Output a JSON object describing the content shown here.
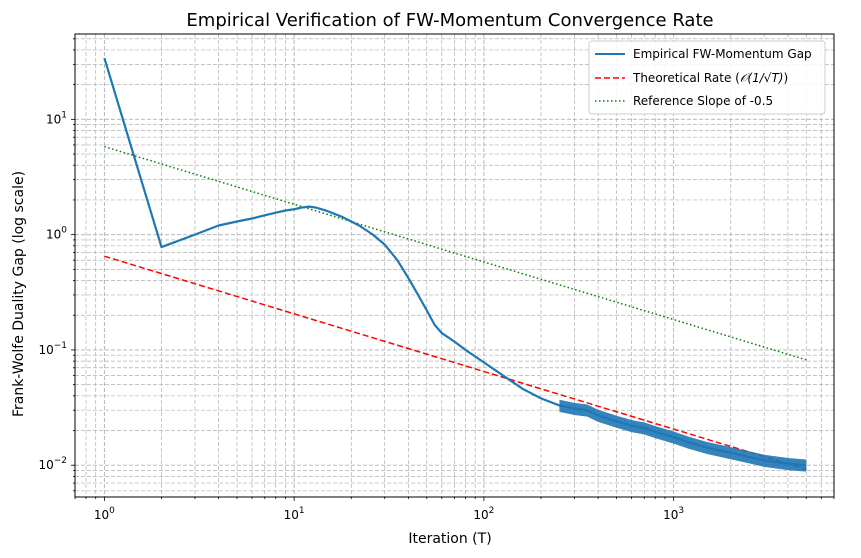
{
  "chart_data": {
    "type": "line",
    "title": "Empirical Verification of FW-Momentum Convergence Rate",
    "xlabel": "Iteration (T)",
    "ylabel": "Frank-Wolfe Duality Gap (log scale)",
    "xscale": "log",
    "yscale": "log",
    "xlim": [
      0.7,
      7000
    ],
    "ylim": [
      0.0053,
      55
    ],
    "grid": "both-major-minor-dashed",
    "legend_position": "top-right",
    "x_ticks": [
      {
        "value": 1,
        "base": "10",
        "exp": "0"
      },
      {
        "value": 10,
        "base": "10",
        "exp": "1"
      },
      {
        "value": 100,
        "base": "10",
        "exp": "2"
      },
      {
        "value": 1000,
        "base": "10",
        "exp": "3"
      }
    ],
    "y_ticks": [
      {
        "value": 0.01,
        "base": "10",
        "exp": "−2"
      },
      {
        "value": 0.1,
        "base": "10",
        "exp": "−1"
      },
      {
        "value": 1,
        "base": "10",
        "exp": "0"
      },
      {
        "value": 10,
        "base": "10",
        "exp": "1"
      }
    ],
    "series": [
      {
        "name": "Empirical FW-Momentum Gap",
        "color": "#1f77b4",
        "style": "solid",
        "points": [
          [
            1,
            34
          ],
          [
            2,
            0.78
          ],
          [
            3,
            1.0
          ],
          [
            4,
            1.2
          ],
          [
            5,
            1.3
          ],
          [
            6,
            1.38
          ],
          [
            7,
            1.47
          ],
          [
            8,
            1.55
          ],
          [
            9,
            1.62
          ],
          [
            10,
            1.66
          ],
          [
            11,
            1.72
          ],
          [
            12,
            1.75
          ],
          [
            13,
            1.72
          ],
          [
            15,
            1.6
          ],
          [
            18,
            1.42
          ],
          [
            22,
            1.2
          ],
          [
            26,
            1.0
          ],
          [
            30,
            0.82
          ],
          [
            35,
            0.6
          ],
          [
            40,
            0.42
          ],
          [
            45,
            0.3
          ],
          [
            50,
            0.22
          ],
          [
            55,
            0.165
          ],
          [
            60,
            0.14
          ],
          [
            70,
            0.118
          ],
          [
            80,
            0.1
          ],
          [
            100,
            0.078
          ],
          [
            130,
            0.058
          ],
          [
            160,
            0.046
          ],
          [
            200,
            0.038
          ],
          [
            250,
            0.033
          ],
          [
            300,
            0.031
          ],
          [
            350,
            0.03
          ],
          [
            400,
            0.027
          ],
          [
            500,
            0.024
          ],
          [
            600,
            0.022
          ],
          [
            700,
            0.021
          ],
          [
            800,
            0.0195
          ],
          [
            1000,
            0.0175
          ],
          [
            1200,
            0.0158
          ],
          [
            1500,
            0.0142
          ],
          [
            2000,
            0.0128
          ],
          [
            2500,
            0.0118
          ],
          [
            3000,
            0.011
          ],
          [
            4000,
            0.0103
          ],
          [
            5000,
            0.01
          ]
        ]
      },
      {
        "name": "Theoretical Rate (𝒪(1/√T))",
        "legend_prefix": "Theoretical Rate (",
        "legend_math": "𝒪(1/√T)",
        "legend_suffix": ")",
        "color": "#ff0000",
        "style": "dashed",
        "points": [
          [
            1,
            0.65
          ],
          [
            5000,
            0.0092
          ]
        ]
      },
      {
        "name": "Reference Slope of -0.5",
        "color": "#008000",
        "style": "dotted",
        "points": [
          [
            1,
            5.8
          ],
          [
            5000,
            0.082
          ]
        ]
      }
    ]
  }
}
